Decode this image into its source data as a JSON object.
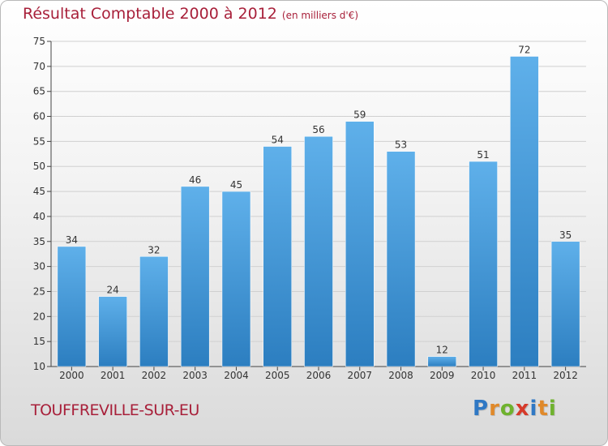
{
  "header": {
    "title": "Résultat Comptable 2000 à 2012",
    "subtitle": "(en milliers d'€)"
  },
  "footer": {
    "city": "TOUFFREVILLE-SUR-EU",
    "logo_letters": [
      "P",
      "r",
      "o",
      "x",
      "i",
      "t",
      "i"
    ],
    "logo_colors": [
      "#2f78c4",
      "#e0892a",
      "#6fb22e",
      "#d63a2a",
      "#2f78c4",
      "#e0892a",
      "#6fb22e"
    ]
  },
  "colors": {
    "title": "#a8203a",
    "bar_top": "#5fb0ea",
    "bar_bottom": "#2c7ec0",
    "grid": "#d0d0d0",
    "axis": "#444444"
  },
  "chart_data": {
    "type": "bar",
    "title": "Résultat Comptable 2000 à 2012",
    "subtitle": "(en milliers d'€)",
    "xlabel": "",
    "ylabel": "",
    "categories": [
      "2000",
      "2001",
      "2002",
      "2003",
      "2004",
      "2005",
      "2006",
      "2007",
      "2008",
      "2009",
      "2010",
      "2011",
      "2012"
    ],
    "values": [
      34,
      24,
      32,
      46,
      45,
      54,
      56,
      59,
      53,
      12,
      51,
      72,
      35
    ],
    "ylim": [
      10,
      75
    ],
    "yticks": [
      10,
      15,
      20,
      25,
      30,
      35,
      40,
      45,
      50,
      55,
      60,
      65,
      70,
      75
    ],
    "grid": true
  }
}
